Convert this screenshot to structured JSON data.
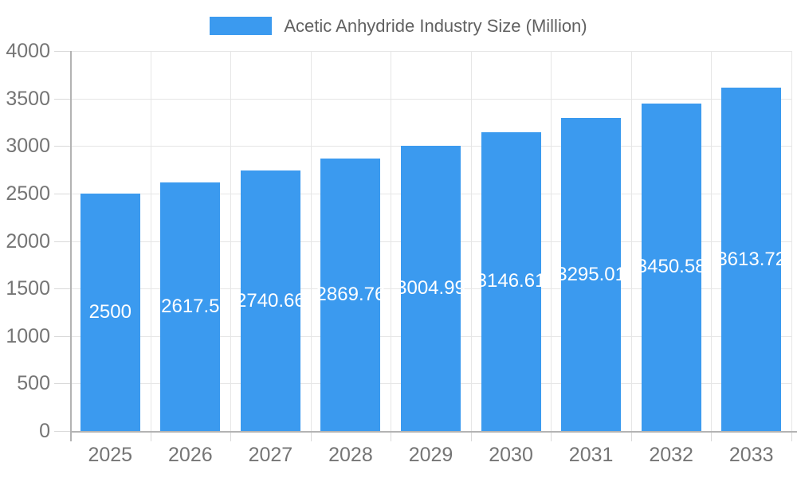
{
  "chart_data": {
    "type": "bar",
    "title": "Acetic Anhydride Industry Size (Million)",
    "series_name": "Acetic Anhydride Industry Size (Million)",
    "categories": [
      "2025",
      "2026",
      "2027",
      "2028",
      "2029",
      "2030",
      "2031",
      "2032",
      "2033"
    ],
    "values": [
      2500,
      2617.5,
      2740.66,
      2869.76,
      3004.99,
      3146.61,
      3295.01,
      3450.58,
      3613.72
    ],
    "bar_labels": [
      "2500",
      "2617.5",
      "2740.66",
      "2869.76",
      "3004.99",
      "3146.61",
      "3295.01",
      "3450.58",
      "3613.72"
    ],
    "xlabel": "",
    "ylabel": "",
    "ylim": [
      0,
      4000
    ],
    "yticks": [
      0,
      500,
      1000,
      1500,
      2000,
      2500,
      3000,
      3500,
      4000
    ],
    "grid": true,
    "legend_position": "top",
    "colors": {
      "bar": "#3b9aef",
      "grid": "#e6e6e6",
      "axis": "#b3b3b3",
      "tick": "#d9d9d9",
      "axis_label": "#757575",
      "legend_label": "#616161",
      "value_label": "#ffffff",
      "background": "#ffffff"
    }
  }
}
